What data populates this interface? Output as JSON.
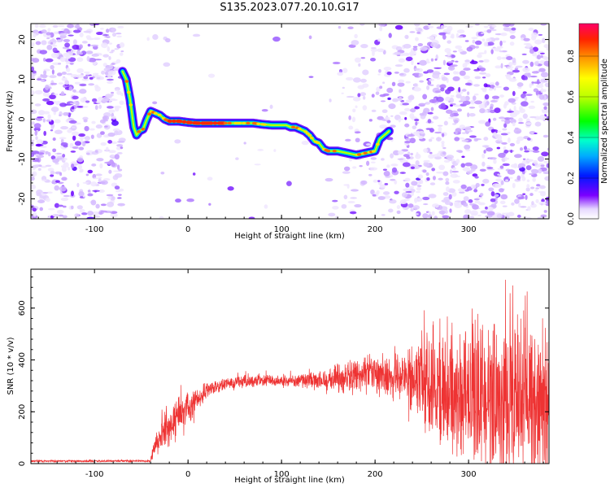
{
  "title": "S135.2023.077.20.10.G17",
  "chart_data": [
    {
      "type": "heatmap",
      "title": "S135.2023.077.20.10.G17",
      "xlabel": "Height of straight line (km)",
      "ylabel": "Frequency (Hz)",
      "xlim": [
        -168,
        386
      ],
      "ylim": [
        -25,
        24
      ],
      "xticks": [
        -100,
        0,
        100,
        200,
        300
      ],
      "yticks": [
        -20,
        -10,
        0,
        10,
        20
      ],
      "colorbar": {
        "label": "Normalized spectral amplitude",
        "range": [
          0,
          1
        ],
        "ticks": [
          0.0,
          0.2,
          0.4,
          0.6,
          0.8
        ]
      },
      "ridge": {
        "x": [
          -70,
          -66,
          -62,
          -58,
          -55,
          -52,
          -48,
          -44,
          -40,
          -35,
          -30,
          -25,
          -20,
          -10,
          0,
          10,
          20,
          30,
          40,
          50,
          60,
          70,
          80,
          90,
          100,
          105,
          110,
          115,
          120,
          125,
          130,
          135,
          140,
          145,
          150,
          160,
          170,
          180,
          190,
          200,
          205,
          210,
          215
        ],
        "y": [
          12,
          10,
          5,
          -2,
          -4,
          -3,
          -2.5,
          0,
          2,
          1.5,
          1,
          0,
          -0.5,
          -0.5,
          -0.8,
          -1,
          -1,
          -1,
          -1,
          -1,
          -1,
          -1,
          -1.3,
          -1.5,
          -1.5,
          -1.5,
          -2,
          -2,
          -2.5,
          -3,
          -4,
          -5.5,
          -6,
          -7.5,
          -8,
          -8,
          -8.5,
          -9,
          -8.5,
          -8,
          -5,
          -4,
          -3
        ]
      }
    },
    {
      "type": "line",
      "xlabel": "Height of straight line (km)",
      "ylabel": "SNR (10 * v/v)",
      "xlim": [
        -168,
        386
      ],
      "ylim": [
        0,
        750
      ],
      "xticks": [
        -100,
        0,
        100,
        200,
        300
      ],
      "yticks": [
        0,
        200,
        400,
        600
      ],
      "color": "#ee3333",
      "envelope": {
        "x": [
          -168,
          -40,
          -38,
          -30,
          -20,
          -10,
          0,
          10,
          20,
          30,
          50,
          80,
          100,
          120,
          140,
          160,
          180,
          200,
          220,
          240,
          260,
          280,
          300,
          320,
          340,
          360,
          386
        ],
        "mean": [
          10,
          10,
          40,
          110,
          150,
          190,
          215,
          250,
          280,
          300,
          315,
          320,
          320,
          320,
          325,
          330,
          340,
          345,
          340,
          330,
          320,
          300,
          280,
          270,
          260,
          250,
          240
        ],
        "spread": [
          4,
          4,
          30,
          60,
          80,
          70,
          60,
          45,
          35,
          25,
          25,
          25,
          25,
          25,
          40,
          55,
          65,
          80,
          95,
          130,
          200,
          260,
          290,
          300,
          300,
          300,
          300
        ]
      }
    }
  ]
}
